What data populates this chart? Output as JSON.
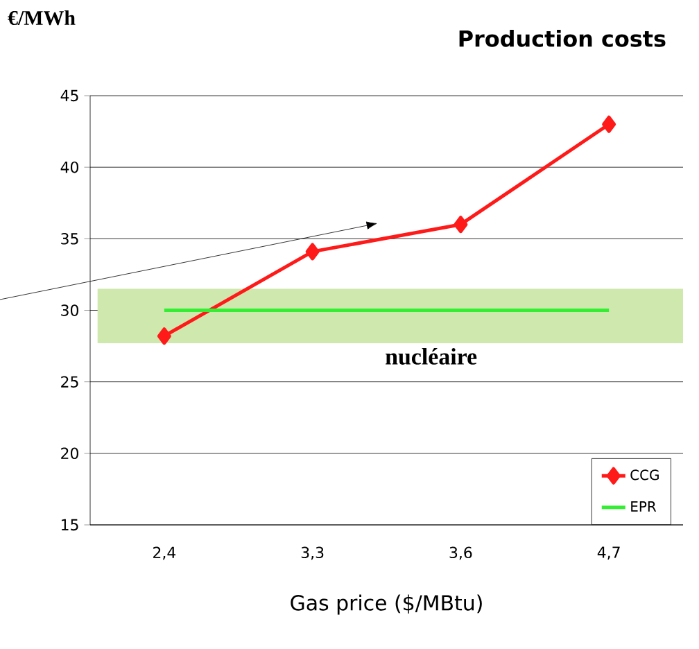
{
  "chart_data": {
    "type": "line",
    "title": "Production costs",
    "ylabel": "€/MWh",
    "xlabel": "Gas price ($/MBtu)",
    "categories": [
      "2,4",
      "3,3",
      "3,6",
      "4,7"
    ],
    "series": [
      {
        "name": "CCG",
        "color": "#ff1a1a",
        "values": [
          28.2,
          34.1,
          36.0,
          43.0
        ],
        "marker": "diamond"
      },
      {
        "name": "EPR",
        "color": "#33ee33",
        "values": [
          30,
          30,
          30,
          30
        ]
      }
    ],
    "bands": [
      {
        "axis": "y",
        "from": 27.7,
        "to": 31.5,
        "label": "nucléaire",
        "color": "#cfe8ae"
      }
    ],
    "ylim": [
      15,
      45
    ],
    "yticks": [
      15,
      20,
      25,
      30,
      35,
      40,
      45
    ],
    "grid": "y",
    "legend": "bottom right"
  }
}
